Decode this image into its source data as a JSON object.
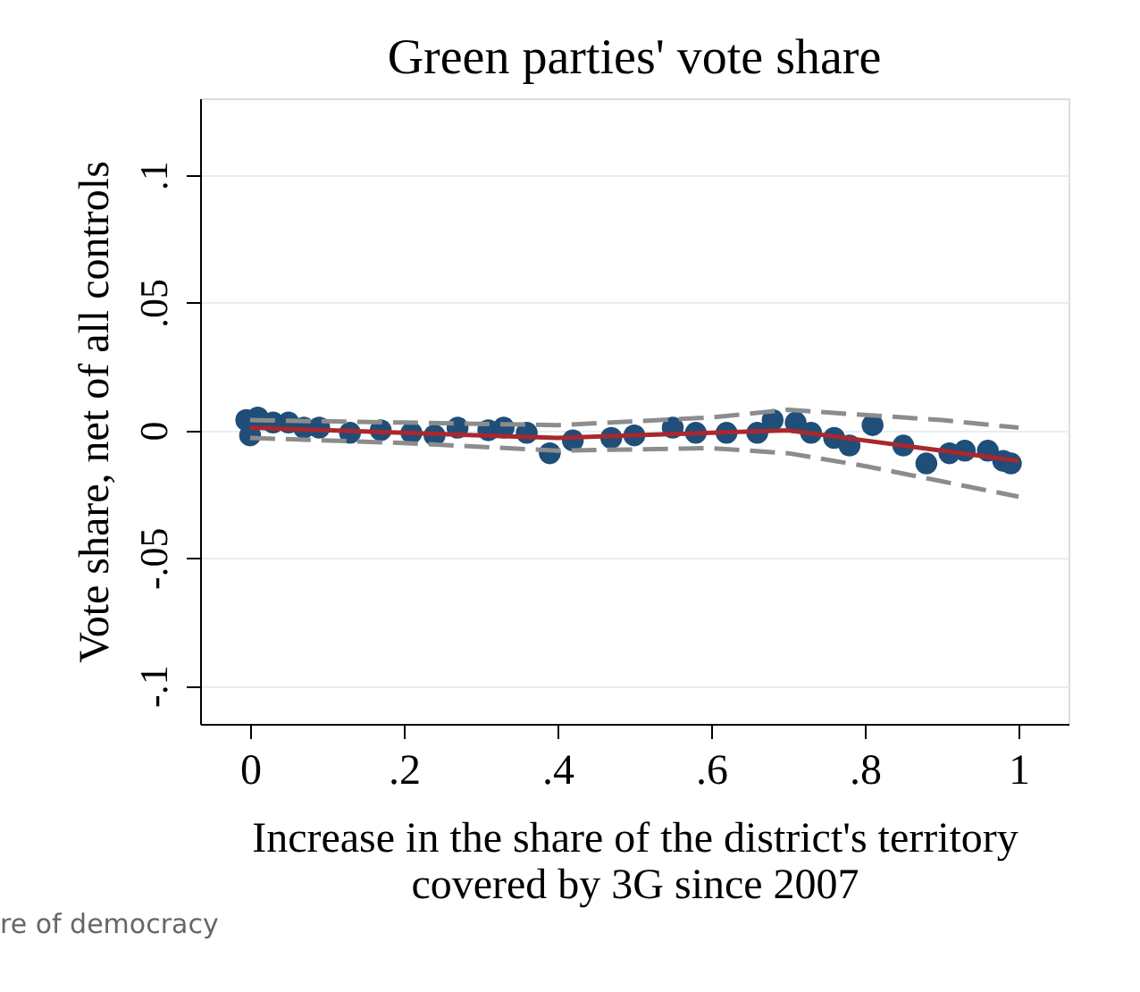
{
  "chart_data": {
    "type": "scatter",
    "title": "Green parties' vote share",
    "xlabel": "Increase in the share of the district's territory\ncovered by 3G since 2007",
    "ylabel": "Vote share, net of all controls",
    "annotations": [
      "re of democracy"
    ],
    "xlim": [
      -0.065,
      1.065
    ],
    "ylim": [
      -0.115,
      0.13
    ],
    "xticks": [
      0,
      {
        "value": 0.2,
        "label": ".2"
      },
      {
        "value": 0.4,
        "label": ".4"
      },
      {
        "value": 0.6,
        "label": ".6"
      },
      {
        "value": 0.8,
        "label": ".8"
      },
      1
    ],
    "yticks": [
      {
        "value": -0.1,
        "label": "-.1"
      },
      {
        "value": -0.05,
        "label": "-.05"
      },
      0,
      {
        "value": 0.05,
        "label": ".05"
      },
      {
        "value": 0.1,
        "label": ".1"
      }
    ],
    "grid": "y",
    "marker": "circle",
    "series": [
      {
        "color": "#1f4e79",
        "x": [
          -0.005,
          0.0,
          0.01,
          0.03,
          0.05,
          0.07,
          0.09,
          0.13,
          0.17,
          0.21,
          0.24,
          0.27,
          0.31,
          0.33,
          0.36,
          0.39,
          0.42,
          0.47,
          0.5,
          0.55,
          0.58,
          0.62,
          0.66,
          0.68,
          0.71,
          0.73,
          0.76,
          0.78,
          0.81,
          0.85,
          0.88,
          0.91,
          0.93,
          0.96,
          0.98,
          0.99
        ],
        "values": [
          0.004,
          -0.002,
          0.005,
          0.003,
          0.003,
          0.001,
          0.001,
          -0.001,
          0.0,
          -0.001,
          -0.002,
          0.001,
          0.0,
          0.001,
          -0.001,
          -0.009,
          -0.004,
          -0.003,
          -0.002,
          0.001,
          -0.001,
          -0.001,
          -0.001,
          0.004,
          0.003,
          -0.001,
          -0.003,
          -0.006,
          0.002,
          -0.006,
          -0.013,
          -0.009,
          -0.008,
          -0.008,
          -0.012,
          -0.013
        ]
      },
      {
        "type": "line",
        "color": "#a8282e",
        "line_style": "solid",
        "marker": "none",
        "x": [
          0,
          0.2,
          0.4,
          0.6,
          0.7,
          0.8,
          0.9,
          1.0
        ],
        "values": [
          0.001,
          -0.001,
          -0.003,
          -0.001,
          0.0,
          -0.004,
          -0.008,
          -0.012
        ]
      },
      {
        "type": "line",
        "color": "#8c8c8c",
        "line_style": "dashed",
        "marker": "none",
        "x": [
          0,
          0.2,
          0.4,
          0.6,
          0.7,
          0.8,
          0.9,
          1.0
        ],
        "values": [
          0.004,
          0.003,
          0.002,
          0.005,
          0.008,
          0.006,
          0.004,
          0.001
        ]
      },
      {
        "type": "line",
        "color": "#8c8c8c",
        "line_style": "dashed",
        "marker": "none",
        "x": [
          0,
          0.2,
          0.4,
          0.6,
          0.7,
          0.8,
          0.9,
          1.0
        ],
        "values": [
          -0.003,
          -0.005,
          -0.008,
          -0.007,
          -0.009,
          -0.014,
          -0.02,
          -0.026
        ]
      }
    ]
  }
}
